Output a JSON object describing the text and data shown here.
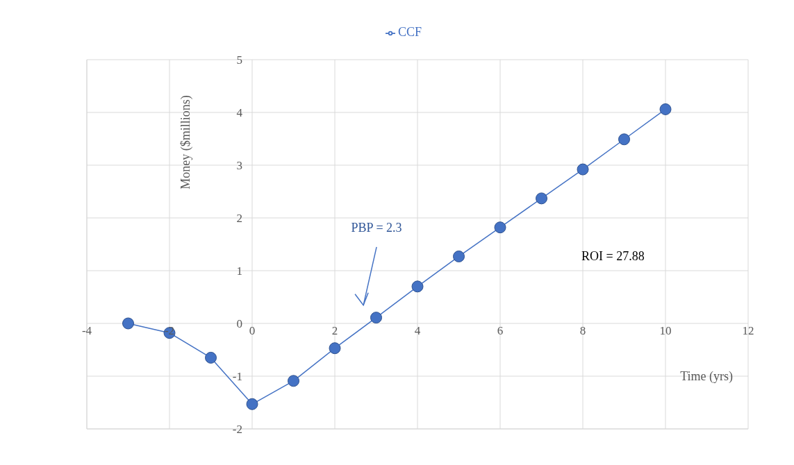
{
  "chart_data": {
    "type": "line",
    "xlabel": "Time (yrs)",
    "ylabel": "Money ($millions)",
    "x": [
      -3,
      -2,
      -1,
      0,
      1,
      2,
      3,
      4,
      5,
      6,
      7,
      8,
      9,
      10
    ],
    "series": [
      {
        "name": "CCF",
        "color": "#4472c4",
        "values": [
          0,
          -0.18,
          -0.65,
          -1.53,
          -1.09,
          -0.47,
          0.11,
          0.7,
          1.27,
          1.82,
          2.37,
          2.92,
          3.49,
          4.06
        ]
      }
    ],
    "xlim": [
      -4,
      12
    ],
    "xticks": [
      -4,
      -2,
      0,
      2,
      4,
      6,
      8,
      10,
      12
    ],
    "ylim": [
      -2,
      5
    ],
    "yticks": [
      -2,
      -1,
      0,
      1,
      2,
      3,
      4,
      5
    ],
    "annotations": [
      "PBP = 2.3",
      "ROI = 27.88"
    ],
    "grid": true,
    "legend": "top",
    "marker": "circle",
    "line_style": "solid"
  }
}
